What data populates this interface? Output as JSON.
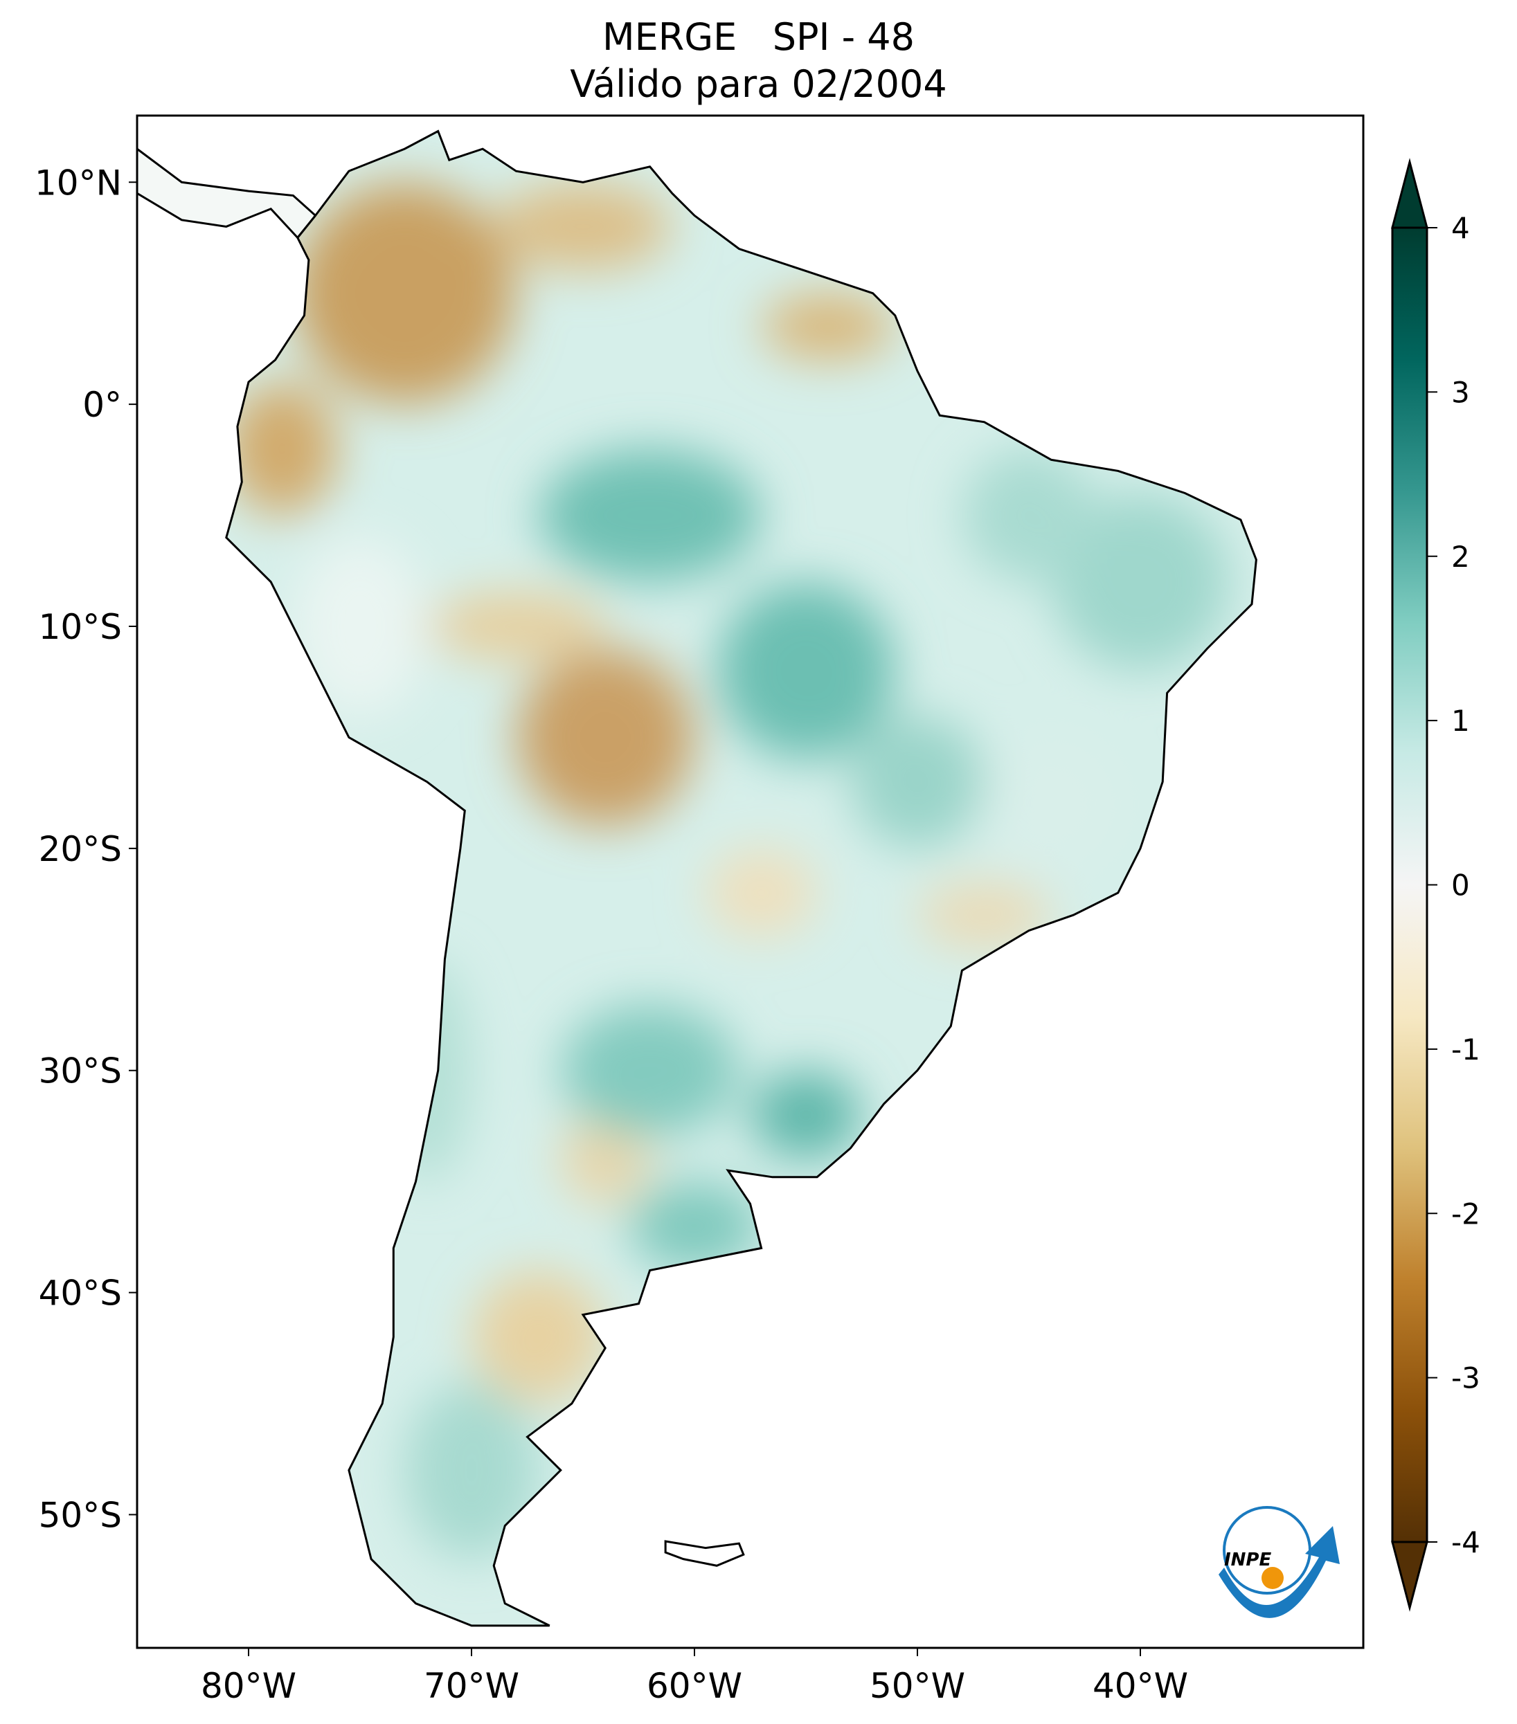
{
  "title": {
    "line1": "MERGE   SPI - 48",
    "line2": "Válido para 02/2004"
  },
  "map": {
    "lon_range": [
      -85,
      -30
    ],
    "lat_range": [
      -56,
      13
    ],
    "x_ticks": [
      {
        "value": -80,
        "label": "80°W"
      },
      {
        "value": -70,
        "label": "70°W"
      },
      {
        "value": -60,
        "label": "60°W"
      },
      {
        "value": -50,
        "label": "50°W"
      },
      {
        "value": -40,
        "label": "40°W"
      }
    ],
    "y_ticks": [
      {
        "value": 10,
        "label": "10°N"
      },
      {
        "value": 0,
        "label": "0°"
      },
      {
        "value": -10,
        "label": "10°S"
      },
      {
        "value": -20,
        "label": "20°S"
      },
      {
        "value": -30,
        "label": "30°S"
      },
      {
        "value": -40,
        "label": "40°S"
      },
      {
        "value": -50,
        "label": "50°S"
      }
    ]
  },
  "colorbar": {
    "colormap": "BrBG",
    "range": [
      -4,
      4
    ],
    "extend": "both",
    "ticks": [
      "4",
      "3",
      "2",
      "1",
      "0",
      "-1",
      "-2",
      "-3",
      "-4"
    ],
    "colors": [
      "#543005",
      "#8c510a",
      "#bf812d",
      "#dfc27d",
      "#f6e8c3",
      "#f5f5f5",
      "#c7eae5",
      "#80cdc1",
      "#35978f",
      "#01665e",
      "#003c30"
    ]
  },
  "logo": {
    "text": "INPE"
  }
}
